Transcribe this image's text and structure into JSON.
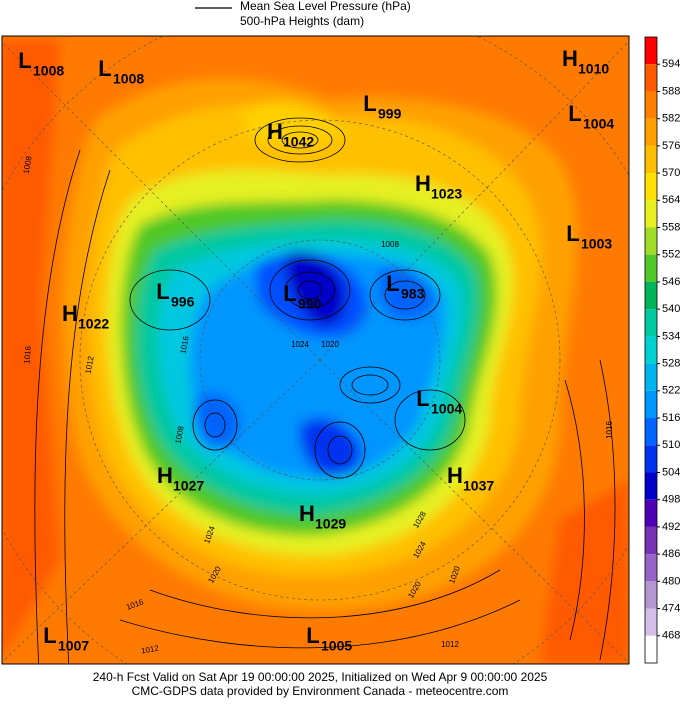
{
  "legend": [
    "Mean Sea Level Pressure (hPa)",
    "500-hPa Heights (dam)"
  ],
  "colorbar": {
    "labels": [
      594,
      588,
      582,
      576,
      570,
      564,
      558,
      552,
      546,
      540,
      534,
      528,
      522,
      516,
      510,
      504,
      498,
      492,
      486,
      480,
      474,
      468
    ],
    "colors": [
      "#ff0000",
      "#ff5a00",
      "#ff7f00",
      "#ffa000",
      "#ffbe00",
      "#ffe000",
      "#e6f020",
      "#a0dc28",
      "#50c828",
      "#00b45a",
      "#00c8a0",
      "#00d2d2",
      "#00b4f0",
      "#0096ff",
      "#0064ff",
      "#0032f0",
      "#0000c8",
      "#5000b4",
      "#7832b4",
      "#9664c8",
      "#b496d2",
      "#d2bee6",
      "#ffffff"
    ]
  },
  "systems": [
    {
      "type": "L",
      "pressure": 1008
    },
    {
      "type": "L",
      "pressure": 1008
    },
    {
      "type": "H",
      "pressure": 1010
    },
    {
      "type": "L",
      "pressure": 999
    },
    {
      "type": "L",
      "pressure": 1004
    },
    {
      "type": "H",
      "pressure": 1042
    },
    {
      "type": "H",
      "pressure": 1023
    },
    {
      "type": "L",
      "pressure": 1003
    },
    {
      "type": "L",
      "pressure": 996
    },
    {
      "type": "L",
      "pressure": 990
    },
    {
      "type": "L",
      "pressure": 983
    },
    {
      "type": "H",
      "pressure": 1022
    },
    {
      "type": "L",
      "pressure": 1004
    },
    {
      "type": "H",
      "pressure": 1027
    },
    {
      "type": "H",
      "pressure": 1037
    },
    {
      "type": "H",
      "pressure": 1029
    },
    {
      "type": "L",
      "pressure": 1007
    },
    {
      "type": "L",
      "pressure": 1005
    }
  ],
  "contour_labels": [
    1008,
    1016,
    1012,
    1016,
    1008,
    1008,
    1024,
    1020,
    1024,
    1020,
    1016,
    1012,
    1020,
    1024,
    1028,
    1020,
    1012,
    1016
  ],
  "footer": [
    "240-h Fcst Valid on Sat Apr 19 00:00:00 2025, Initialized on Wed Apr  9 00:00:00 2025",
    "CMC-GDPS data provided by Environment Canada - meteocentre.com"
  ]
}
